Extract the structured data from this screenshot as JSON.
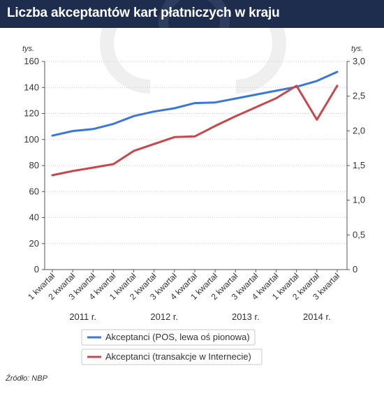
{
  "header": {
    "title": "Liczba akceptantów kart płatniczych w kraju"
  },
  "source": "Źródło: NBP",
  "colors": {
    "header_bg": "#1e2d4d",
    "series_pos": "#3a78d8",
    "series_internet": "#c8474a",
    "grid": "#d0d0d0",
    "axis": "#555555"
  },
  "chart_data": {
    "type": "line",
    "title": "Liczba akceptantów kart płatniczych w kraju",
    "categories": [
      "1 kwartał",
      "2 kwartał",
      "3 kwartał",
      "4 kwartał",
      "1 kwartał",
      "2 kwartał",
      "3 kwartał",
      "4 kwartał",
      "1 kwartał",
      "2 kwartał",
      "3 kwartał",
      "4 kwartał",
      "1 kwartał",
      "2 kwartał",
      "3 kwartał"
    ],
    "years": [
      {
        "label": "2011 r.",
        "from": 0,
        "to": 3
      },
      {
        "label": "2012 r.",
        "from": 4,
        "to": 7
      },
      {
        "label": "2013 r.",
        "from": 8,
        "to": 11
      },
      {
        "label": "2014 r.",
        "from": 12,
        "to": 14
      }
    ],
    "y_left": {
      "unit": "tys.",
      "ylim": [
        0,
        160
      ],
      "ticks": [
        0,
        20,
        40,
        60,
        80,
        100,
        120,
        140,
        160
      ],
      "tick_labels": [
        "0",
        "20",
        "40",
        "60",
        "80",
        "100",
        "120",
        "140",
        "160"
      ]
    },
    "y_right": {
      "unit": "tys.",
      "ylim": [
        0,
        3.0
      ],
      "ticks": [
        0,
        0.5,
        1.0,
        1.5,
        2.0,
        2.5,
        3.0
      ],
      "tick_labels": [
        "0",
        "0,5",
        "1,0",
        "1,5",
        "2,0",
        "2,5",
        "3,0"
      ]
    },
    "grid": true,
    "legend_position": "bottom-center",
    "series": [
      {
        "name": "Akceptanci (POS, lewa oś pionowa)",
        "axis": "left",
        "color": "#3a78d8",
        "values": [
          103,
          106.5,
          108,
          112,
          118,
          121.5,
          124,
          128,
          128.5,
          131.5,
          134.5,
          137.5,
          140.5,
          145,
          152
        ]
      },
      {
        "name": "Akceptanci (transakcje w Internecie)",
        "axis": "right",
        "color": "#c8474a",
        "values": [
          1.36,
          1.42,
          1.47,
          1.52,
          1.71,
          1.81,
          1.91,
          1.92,
          2.07,
          2.21,
          2.34,
          2.47,
          2.65,
          2.16,
          2.65
        ]
      }
    ]
  }
}
